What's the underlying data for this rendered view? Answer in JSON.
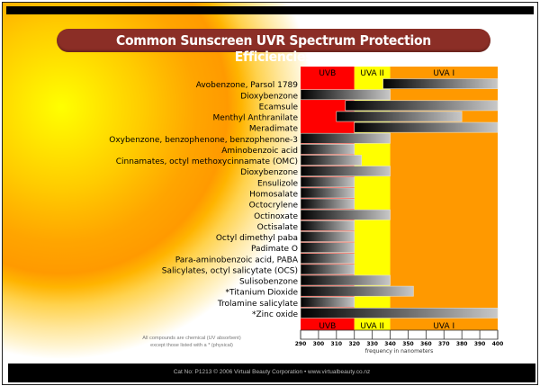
{
  "title": "Common Sunscreen UVR Spectrum Protection Efficiencies",
  "footnote_lines": [
    "All compounds are chemical (UV absorbent)",
    "except those listed with a * (physical)"
  ],
  "footer_text": "Cat No: P1213  © 2006 Virtual Beauty Corporation  •  www.virtualbeauty.co.nz",
  "colors": {
    "title_bg": "#8b2e26",
    "uvb": "#ff0000",
    "uva2": "#ffff00",
    "uva1": "#ff9900",
    "bar_start": "#000000",
    "bar_end": "#c8c8c8"
  },
  "chart_data": {
    "type": "bar",
    "orientation": "horizontal-range",
    "title": "Common Sunscreen UVR Spectrum Protection Efficiencies",
    "xlabel": "frequency in nanometers",
    "ylabel": "",
    "xlim": [
      290,
      400
    ],
    "x_ticks": [
      290,
      300,
      310,
      320,
      330,
      340,
      350,
      360,
      370,
      380,
      390,
      400
    ],
    "bands": [
      {
        "name": "UVB",
        "range": [
          290,
          320
        ]
      },
      {
        "name": "UVA II",
        "range": [
          320,
          340
        ]
      },
      {
        "name": "UVA I",
        "range": [
          340,
          400
        ]
      }
    ],
    "categories": [
      "Avobenzone, Parsol 1789",
      "Dioxybenzone",
      "Ecamsule",
      "Menthyl Anthranilate",
      "Meradimate",
      "Oxybenzone, benzophenone, benzophenone-3",
      "Aminobenzoic acid",
      "Cinnamates, octyl methoxycinnamate (OMC)",
      "Dioxybenzone",
      "Ensulizole",
      "Homosalate",
      "Octocrylene",
      "Octinoxate",
      "Octisalate",
      "Octyl dimethyl paba",
      "Padimate O",
      "Para-aminobenzoic acid, PABA",
      "Salicylates, octyl salicytate (OCS)",
      "Sulisobenzone",
      "*Titanium Dioxide",
      "Trolamine salicylate",
      "*Zinc oxide"
    ],
    "ranges": [
      [
        336,
        400
      ],
      [
        290,
        340
      ],
      [
        315,
        400
      ],
      [
        310,
        380
      ],
      [
        320,
        400
      ],
      [
        290,
        340
      ],
      [
        290,
        320
      ],
      [
        290,
        324
      ],
      [
        290,
        340
      ],
      [
        290,
        320
      ],
      [
        290,
        320
      ],
      [
        290,
        320
      ],
      [
        290,
        340
      ],
      [
        290,
        320
      ],
      [
        290,
        320
      ],
      [
        290,
        320
      ],
      [
        290,
        320
      ],
      [
        290,
        320
      ],
      [
        290,
        340
      ],
      [
        290,
        353
      ],
      [
        290,
        320
      ],
      [
        290,
        400
      ]
    ],
    "grid": false,
    "legend": "none"
  }
}
